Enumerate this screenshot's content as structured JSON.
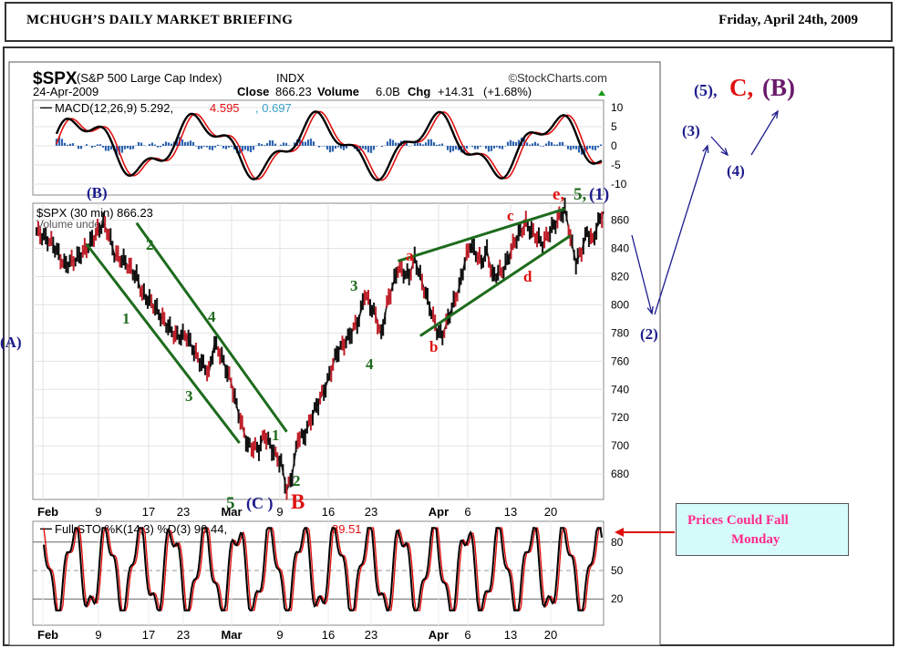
{
  "header": {
    "title": "MCHUGH’S DAILY MARKET BRIEFING",
    "date": "Friday,  April 24th, 2009"
  },
  "chart_data": {
    "type": "line",
    "symbol": "$SPX",
    "name": "(S&P 500 Large Cap Index)",
    "exchange": "INDX",
    "source": "©StockCharts.com",
    "date": "24-Apr-2009",
    "quote": {
      "close_label": "Close",
      "close": "866.23",
      "volume_label": "Volume",
      "volume": "6.0B",
      "chg_label": "Chg",
      "chg": "+14.31",
      "chg_pct": "(+1.68%)"
    },
    "price_legend": "$SPX (30 min) 866.23",
    "volume_legend": "Volume undef",
    "x_ticks": [
      "Feb",
      "9",
      "17",
      "23",
      "Mar",
      "9",
      "16",
      "23",
      "Apr",
      "6",
      "13",
      "20"
    ],
    "macd": {
      "legend_name": "MACD(12,26,9)",
      "macd": "5.292",
      "signal": "4.595",
      "hist": "0.697",
      "yticks": [
        "10",
        "5",
        "0",
        "-5",
        "-10"
      ],
      "ylim": [
        -10,
        10
      ]
    },
    "price": {
      "yticks": [
        "860",
        "840",
        "820",
        "800",
        "780",
        "760",
        "740",
        "720",
        "700",
        "680"
      ],
      "ylim": [
        662,
        872
      ],
      "series": [
        {
          "x": 0,
          "y": 852
        },
        {
          "x": 3,
          "y": 843
        },
        {
          "x": 5,
          "y": 828
        },
        {
          "x": 7,
          "y": 832
        },
        {
          "x": 9,
          "y": 840
        },
        {
          "x": 12,
          "y": 858
        },
        {
          "x": 13,
          "y": 850
        },
        {
          "x": 14,
          "y": 836
        },
        {
          "x": 16,
          "y": 830
        },
        {
          "x": 18,
          "y": 820
        },
        {
          "x": 19,
          "y": 808
        },
        {
          "x": 21,
          "y": 800
        },
        {
          "x": 23,
          "y": 788
        },
        {
          "x": 25,
          "y": 778
        },
        {
          "x": 27,
          "y": 778
        },
        {
          "x": 29,
          "y": 762
        },
        {
          "x": 31,
          "y": 752
        },
        {
          "x": 32,
          "y": 772
        },
        {
          "x": 33,
          "y": 766
        },
        {
          "x": 35,
          "y": 745
        },
        {
          "x": 36,
          "y": 728
        },
        {
          "x": 38,
          "y": 700
        },
        {
          "x": 40,
          "y": 698
        },
        {
          "x": 41,
          "y": 708
        },
        {
          "x": 43,
          "y": 693
        },
        {
          "x": 44,
          "y": 688
        },
        {
          "x": 45,
          "y": 668
        },
        {
          "x": 46,
          "y": 680
        },
        {
          "x": 47,
          "y": 706
        },
        {
          "x": 48,
          "y": 706
        },
        {
          "x": 50,
          "y": 725
        },
        {
          "x": 52,
          "y": 742
        },
        {
          "x": 54,
          "y": 766
        },
        {
          "x": 56,
          "y": 776
        },
        {
          "x": 58,
          "y": 790
        },
        {
          "x": 59,
          "y": 808
        },
        {
          "x": 61,
          "y": 792
        },
        {
          "x": 62,
          "y": 778
        },
        {
          "x": 63,
          "y": 800
        },
        {
          "x": 65,
          "y": 826
        },
        {
          "x": 67,
          "y": 820
        },
        {
          "x": 68,
          "y": 833
        },
        {
          "x": 69,
          "y": 820
        },
        {
          "x": 71,
          "y": 795
        },
        {
          "x": 72,
          "y": 782
        },
        {
          "x": 73,
          "y": 778
        },
        {
          "x": 74,
          "y": 790
        },
        {
          "x": 76,
          "y": 812
        },
        {
          "x": 77,
          "y": 830
        },
        {
          "x": 78,
          "y": 843
        },
        {
          "x": 80,
          "y": 830
        },
        {
          "x": 81,
          "y": 838
        },
        {
          "x": 82,
          "y": 820
        },
        {
          "x": 84,
          "y": 825
        },
        {
          "x": 86,
          "y": 845
        },
        {
          "x": 88,
          "y": 858
        },
        {
          "x": 89,
          "y": 852
        },
        {
          "x": 90,
          "y": 848
        },
        {
          "x": 91,
          "y": 843
        },
        {
          "x": 92,
          "y": 850
        },
        {
          "x": 94,
          "y": 862
        },
        {
          "x": 95,
          "y": 868
        },
        {
          "x": 96,
          "y": 848
        },
        {
          "x": 97,
          "y": 830
        },
        {
          "x": 98,
          "y": 838
        },
        {
          "x": 99,
          "y": 852
        },
        {
          "x": 100,
          "y": 845
        },
        {
          "x": 101,
          "y": 858
        },
        {
          "x": 102,
          "y": 866
        }
      ]
    },
    "sto": {
      "legend_name": "Full STO %K(14,3) %D(3)",
      "k": "90.44",
      "d": "89.51",
      "yticks": [
        "80",
        "50",
        "20"
      ],
      "ylim": [
        0,
        100
      ]
    },
    "annotations": {
      "top_waves": [
        "(5),",
        "C,",
        "(B)"
      ],
      "wave_3_right": "(3)",
      "wave_4_right": "(4)",
      "wave_2_right": "(2)",
      "wave_A": "(A)",
      "wave_B_top": "(B)",
      "e5_1": "e, ",
      "e5_2": "5,",
      "e5_3": "(1)",
      "bottom_5": "5",
      "bottom_C": "(C )",
      "bottom_B": "B",
      "w1": "1",
      "w2": "2",
      "w3": "3",
      "w4": "4",
      "w1b": "1",
      "w2b": "2",
      "w3c": "3",
      "w4c": "4",
      "a": "a",
      "b": "b",
      "c": "c",
      "d": "d"
    },
    "colors": {
      "red": "#e01010",
      "green": "#1d6b1d",
      "navy": "#1c1c8c",
      "purple": "#6a1a6a",
      "macd_hist": "#2f64b0"
    }
  },
  "callout": {
    "line1": "Prices Could Fall",
    "line2": "Monday"
  }
}
